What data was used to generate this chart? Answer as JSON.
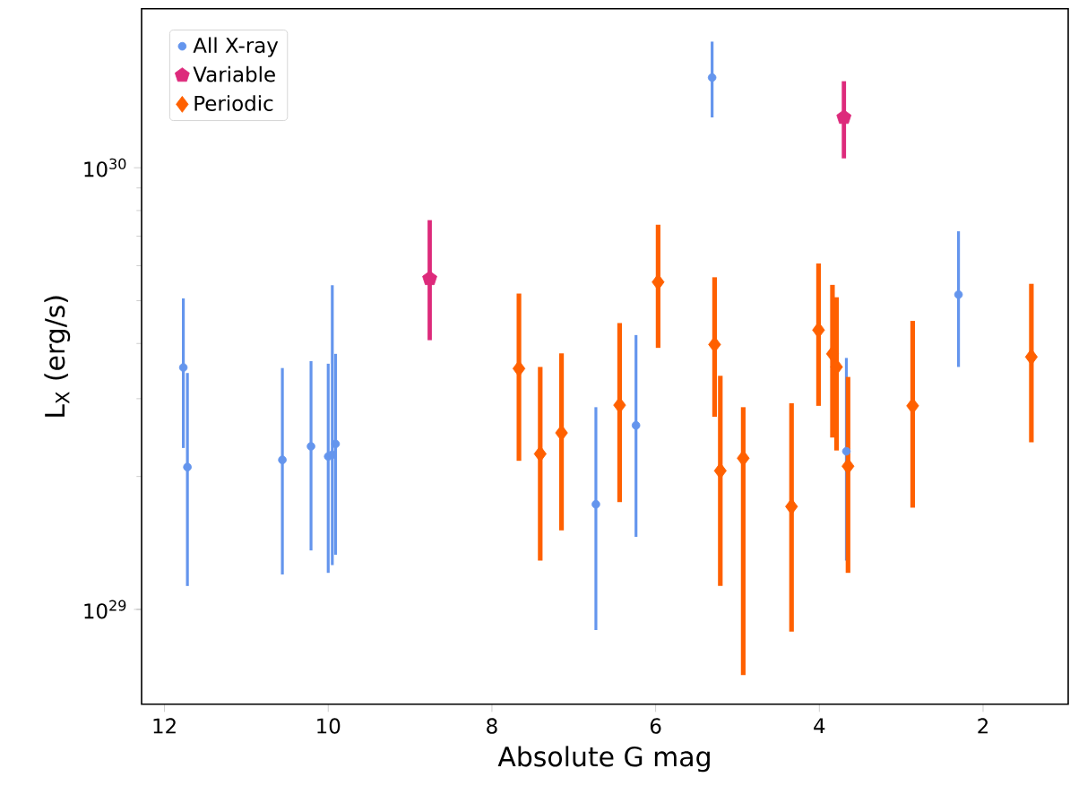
{
  "chart_data": {
    "type": "scatter",
    "xlabel": "Absolute G mag",
    "ylabel": "L$_{X}$ (erg/s)",
    "log": "y",
    "grid": false,
    "legend": "top left",
    "xlim": [
      12.28,
      0.96
    ],
    "xticks": [
      12,
      10,
      8,
      6,
      4,
      2
    ],
    "ylim": [
      6.1e+28,
      2.29e+30
    ],
    "yticks": [
      {
        "value": 1e+29,
        "label": "10$^{29}$"
      },
      {
        "value": 1e+30,
        "label": "10$^{30}$"
      }
    ],
    "series": [
      {
        "name": "All X-ray",
        "color": "#6495ed",
        "marker": "circle",
        "x": [
          11.77,
          11.72,
          10.56,
          10.21,
          10.0,
          9.95,
          9.91,
          6.73,
          6.24,
          5.31,
          3.67,
          2.3
        ],
        "values": [
          3.53e+29,
          2.1e+29,
          2.18e+29,
          2.34e+29,
          2.22e+29,
          2.24e+29,
          2.37e+29,
          1.73e+29,
          2.61e+29,
          1.6e+30,
          2.28e+29,
          5.16e+29
        ],
        "errors": [
          [
            2.32e+29,
            5.06e+29
          ],
          [
            1.13e+29,
            3.43e+29
          ],
          [
            1.2e+29,
            3.52e+29
          ],
          [
            1.36e+29,
            3.65e+29
          ],
          [
            1.21e+29,
            3.6e+29
          ],
          [
            1.26e+29,
            5.42e+29
          ],
          [
            1.33e+29,
            3.79e+29
          ],
          [
            8.98e+28,
            2.87e+29
          ],
          [
            1.46e+29,
            4.18e+29
          ],
          [
            1.3e+30,
            1.93e+30
          ],
          [
            1.29e+29,
            3.71e+29
          ],
          [
            3.54e+29,
            7.18e+29
          ]
        ]
      },
      {
        "name": "Variable",
        "color": "#dd2a7b",
        "x": [
          8.76,
          3.7
        ],
        "values": [
          5.61e+29,
          1.3e+30
        ],
        "errors": [
          [
            4.07e+29,
            7.61e+29
          ],
          [
            1.05e+30,
            1.57e+30
          ]
        ]
      },
      {
        "name": "Periodic",
        "color": "#ff6000",
        "marker": "diamond",
        "x": [
          7.67,
          7.41,
          7.15,
          6.44,
          5.97,
          5.28,
          5.21,
          4.93,
          4.34,
          4.01,
          3.84,
          3.79,
          3.65,
          2.86,
          1.41
        ],
        "values": [
          3.51e+29,
          2.25e+29,
          2.51e+29,
          2.9e+29,
          5.51e+29,
          3.98e+29,
          2.06e+29,
          2.2e+29,
          1.71e+29,
          4.29e+29,
          3.79e+29,
          3.54e+29,
          2.11e+29,
          2.89e+29,
          3.73e+29
        ],
        "errors": [
          [
            2.17e+29,
            5.19e+29
          ],
          [
            1.29e+29,
            3.54e+29
          ],
          [
            1.51e+29,
            3.8e+29
          ],
          [
            1.75e+29,
            4.45e+29
          ],
          [
            3.91e+29,
            7.43e+29
          ],
          [
            2.73e+29,
            5.65e+29
          ],
          [
            1.13e+29,
            3.38e+29
          ],
          [
            7.1e+28,
            2.87e+29
          ],
          [
            8.91e+28,
            2.93e+29
          ],
          [
            2.89e+29,
            6.07e+29
          ],
          [
            2.45e+29,
            5.43e+29
          ],
          [
            2.29e+29,
            5.09e+29
          ],
          [
            1.21e+29,
            3.36e+29
          ],
          [
            1.7e+29,
            4.5e+29
          ],
          [
            2.39e+29,
            5.46e+29
          ]
        ]
      }
    ]
  }
}
